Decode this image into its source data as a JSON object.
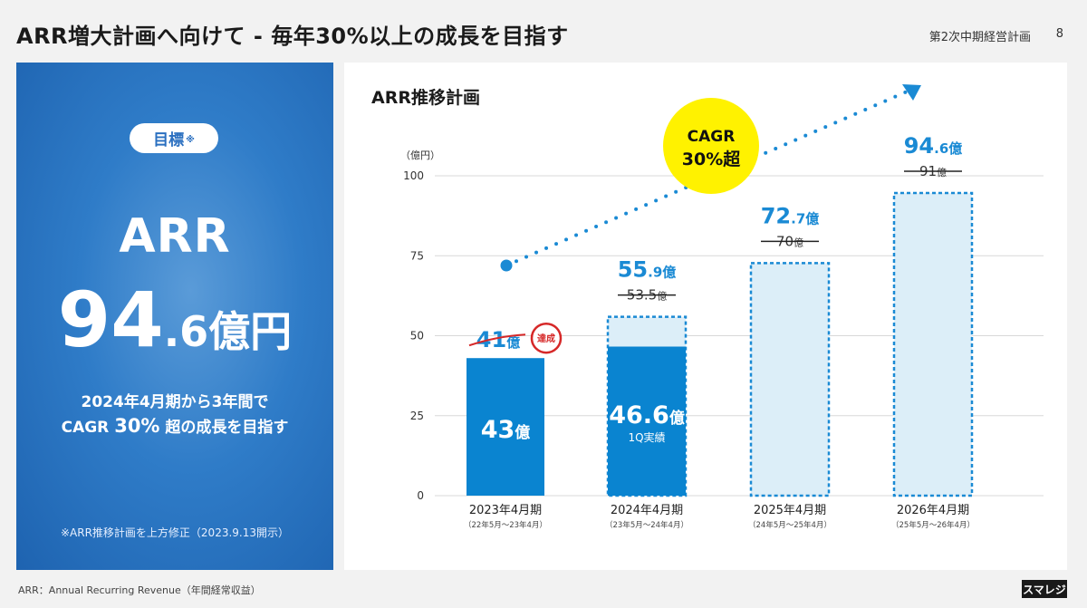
{
  "header": {
    "title": "ARR増大計画へ向けて - 毎年30%以上の成長を目指す",
    "doc_label": "第2次中期経営計画",
    "page_number": "8"
  },
  "left_panel": {
    "goal_label": "目標",
    "goal_mark": "※",
    "metric": "ARR",
    "value_big": "94",
    "value_small": ".6億円",
    "subtitle_line1": "2024年4月期から3年間で",
    "subtitle_line2_pre": "CAGR ",
    "subtitle_line2_num": "30%",
    "subtitle_line2_post": " 超の成長を目指す",
    "note": "※ARR推移計画を上方修正（2023.9.13開示）"
  },
  "chart_data": {
    "type": "bar",
    "title": "ARR推移計画",
    "unit_label": "（億円）",
    "ylim": [
      0,
      100
    ],
    "yticks": [
      0,
      25,
      50,
      75,
      100
    ],
    "categories": [
      "2023年4月期",
      "2024年4月期",
      "2025年4月期",
      "2026年4月期"
    ],
    "category_subs": [
      "（22年5月〜23年4月）",
      "（23年5月〜24年4月）",
      "（24年5月〜25年4月）",
      "（25年5月〜26年4月）"
    ],
    "actual": [
      43,
      46.6,
      null,
      null
    ],
    "actual_labels": [
      "43",
      "46.6",
      "",
      ""
    ],
    "actual_sub": [
      "",
      "1Q実績",
      "",
      ""
    ],
    "plan": [
      null,
      55.9,
      72.7,
      94.6
    ],
    "plan_labels": [
      {
        "big": "41",
        "small": "億"
      },
      {
        "big": "55",
        "small": ".9億"
      },
      {
        "big": "72",
        "small": ".7億"
      },
      {
        "big": "94",
        "small": ".6億"
      }
    ],
    "old_plan_labels": [
      {
        "big": "",
        "small": ""
      },
      {
        "big": "53.5",
        "small": "億"
      },
      {
        "big": "70",
        "small": "億"
      },
      {
        "big": "91",
        "small": "億"
      }
    ],
    "oku_unit": "億",
    "achieved_badge": "達成",
    "cagr_line1": "CAGR",
    "cagr_line2_num": "30%",
    "cagr_line2_post": "超",
    "colors": {
      "actual": "#0a84d0",
      "plan_fill": "#dceef8",
      "plan_border": "#1a8ad4",
      "value_text": "#1a8ad4",
      "badge": "#d62828",
      "cagr_circle": "#fff200"
    }
  },
  "footer": {
    "note": "ARR：Annual Recurring Revenue（年間経常収益）",
    "logo": "スマレジ"
  }
}
